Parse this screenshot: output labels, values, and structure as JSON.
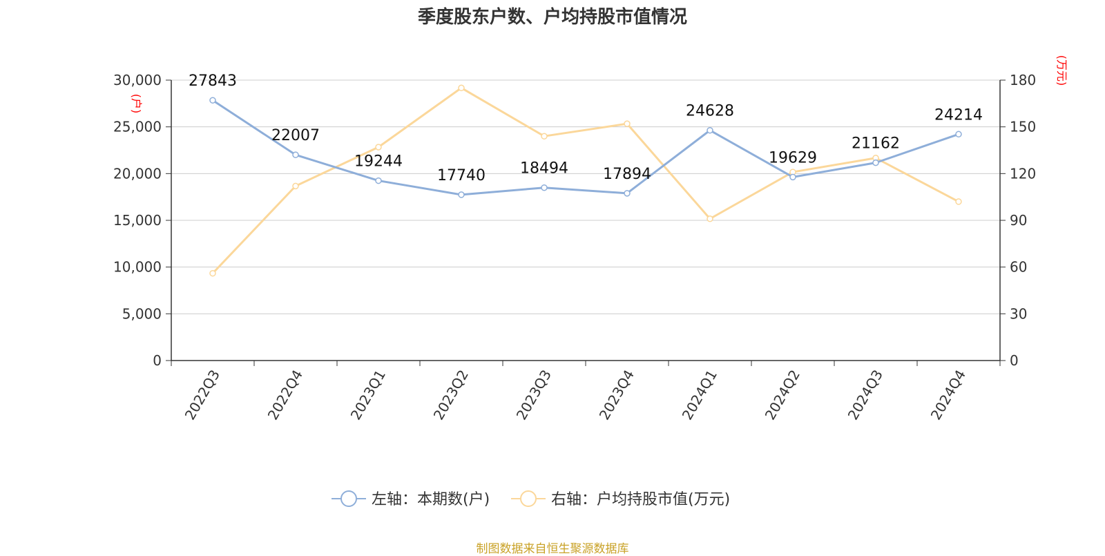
{
  "title": "季度股东户数、户均持股市值情况",
  "source": "制图数据来自恒生聚源数据库",
  "colors": {
    "left_series": "#8eaed9",
    "right_series": "#fbd79a",
    "grid": "#cccccc",
    "axis": "#333333",
    "unit": "#ff0000",
    "source": "#c9a227"
  },
  "chart_data": {
    "type": "line",
    "title": "季度股东户数、户均持股市值情况",
    "categories": [
      "2022Q3",
      "2022Q4",
      "2023Q1",
      "2023Q2",
      "2023Q3",
      "2023Q4",
      "2024Q1",
      "2024Q2",
      "2024Q3",
      "2024Q4"
    ],
    "left_axis": {
      "unit": "(户)",
      "ylim": [
        0,
        30000
      ],
      "ticks": [
        "0",
        "5,000",
        "10,000",
        "15,000",
        "20,000",
        "25,000",
        "30,000"
      ]
    },
    "right_axis": {
      "unit": "(万元)",
      "ylim": [
        0,
        180
      ],
      "ticks": [
        "0",
        "30",
        "60",
        "90",
        "120",
        "150",
        "180"
      ]
    },
    "series": [
      {
        "name": "左轴：本期数(户)",
        "axis": "left",
        "values": [
          27843,
          22007,
          19244,
          17740,
          18494,
          17894,
          24628,
          19629,
          21162,
          24214
        ],
        "labels": [
          "27843",
          "22007",
          "19244",
          "17740",
          "18494",
          "17894",
          "24628",
          "19629",
          "21162",
          "24214"
        ]
      },
      {
        "name": "右轴：户均持股市值(万元)",
        "axis": "right",
        "values": [
          56,
          112,
          137,
          175,
          144,
          152,
          91,
          121,
          130,
          102
        ]
      }
    ],
    "grid": true,
    "legend": "bottom-center"
  }
}
